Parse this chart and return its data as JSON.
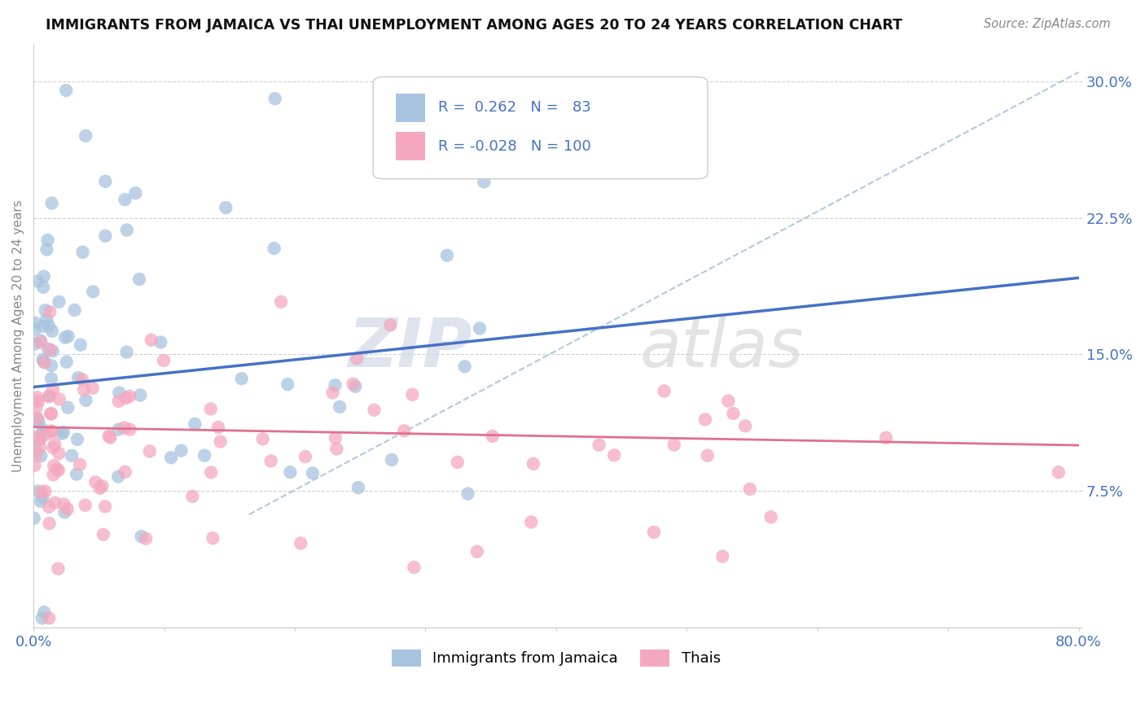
{
  "title": "IMMIGRANTS FROM JAMAICA VS THAI UNEMPLOYMENT AMONG AGES 20 TO 24 YEARS CORRELATION CHART",
  "source": "Source: ZipAtlas.com",
  "ylabel": "Unemployment Among Ages 20 to 24 years",
  "xlim": [
    0.0,
    0.8
  ],
  "ylim": [
    0.0,
    0.32
  ],
  "xticks": [
    0.0,
    0.1,
    0.2,
    0.3,
    0.4,
    0.5,
    0.6,
    0.7,
    0.8
  ],
  "xticklabels": [
    "0.0%",
    "",
    "",
    "",
    "",
    "",
    "",
    "",
    "80.0%"
  ],
  "yticks": [
    0.0,
    0.075,
    0.15,
    0.225,
    0.3
  ],
  "yticklabels": [
    "",
    "7.5%",
    "15.0%",
    "22.5%",
    "30.0%"
  ],
  "blue_color": "#a8c4e0",
  "pink_color": "#f4a8be",
  "blue_line_color": "#4472c4",
  "pink_line_color": "#e07090",
  "diag_line_color": "#a8c4e0",
  "text_color": "#4472c4",
  "jamaica_n": 83,
  "thai_n": 100,
  "blue_regression": [
    0.0,
    0.132,
    0.8,
    0.192
  ],
  "pink_regression": [
    0.0,
    0.11,
    0.8,
    0.1
  ],
  "diag_line": [
    0.165,
    0.062,
    0.8,
    0.305
  ]
}
